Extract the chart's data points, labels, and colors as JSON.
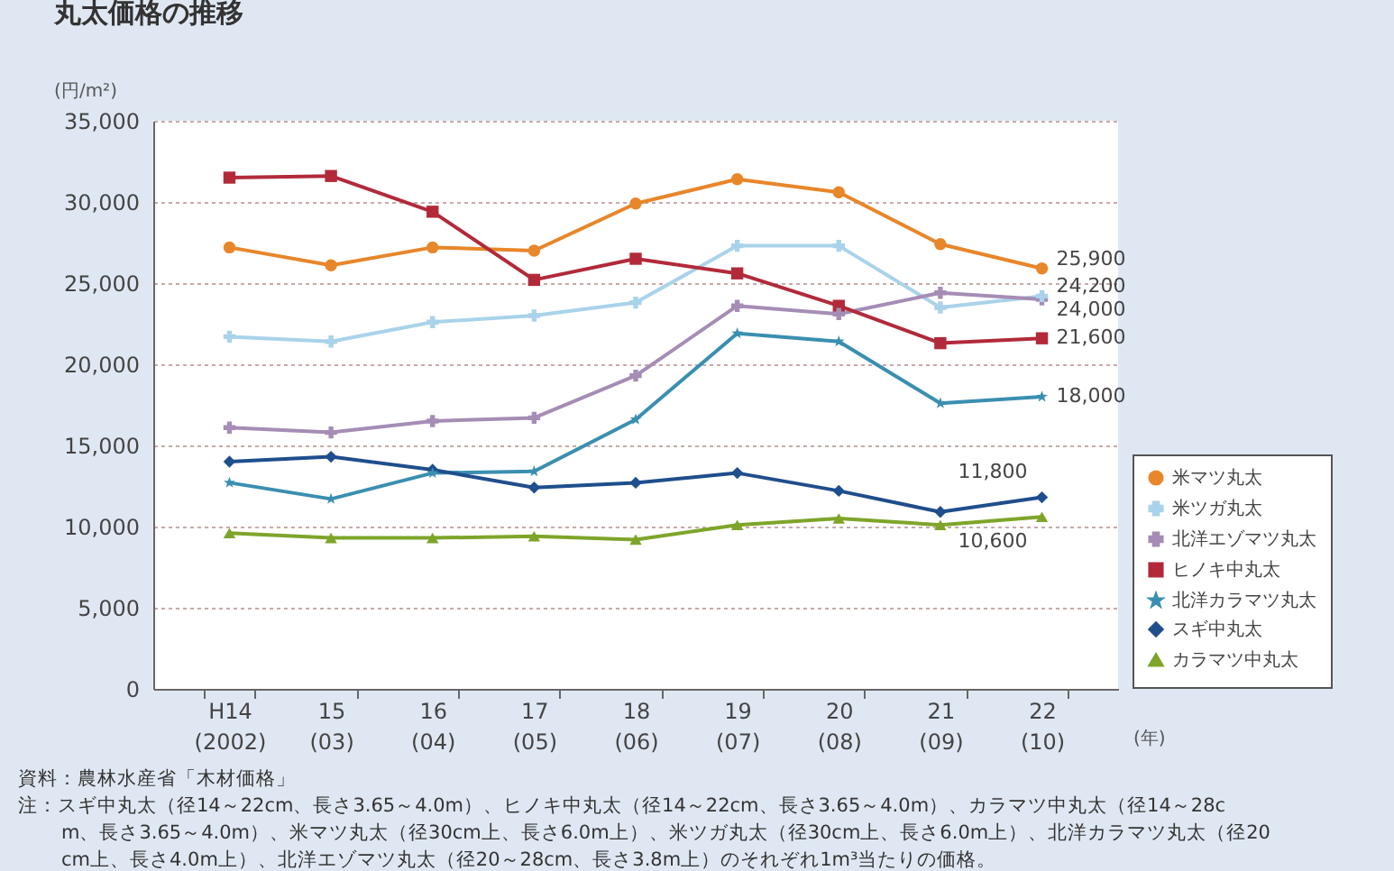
{
  "chart_data": {
    "type": "line",
    "title": "丸太価格の推移",
    "ylabel": "(円/m²)",
    "xlabel": "(年)",
    "categories": [
      "H14\n(2002)",
      "15\n(03)",
      "16\n(04)",
      "17\n(05)",
      "18\n(06)",
      "19\n(07)",
      "20\n(08)",
      "21\n(09)",
      "22\n(10)"
    ],
    "ylim": [
      0,
      35000
    ],
    "yticks": [
      {
        "value": 0,
        "label": "0"
      },
      {
        "value": 5000,
        "label": "5,000"
      },
      {
        "value": 10000,
        "label": "10,000"
      },
      {
        "value": 15000,
        "label": "15,000"
      },
      {
        "value": 20000,
        "label": "20,000"
      },
      {
        "value": 25000,
        "label": "25,000"
      },
      {
        "value": 30000,
        "label": "30,000"
      },
      {
        "value": 35000,
        "label": "35,000"
      }
    ],
    "grid": "y",
    "legend": "right",
    "line_style": "solid",
    "series": [
      {
        "name": "米マツ丸太",
        "color": "#e8862a",
        "marker": "circle",
        "values": [
          27200,
          26100,
          27200,
          27000,
          29900,
          31400,
          30600,
          27400,
          25900
        ],
        "value_labels": [
          null,
          null,
          null,
          null,
          null,
          null,
          null,
          null,
          "25,900"
        ]
      },
      {
        "name": "米ツガ丸太",
        "color": "#a9d3ea",
        "marker": "cross",
        "values": [
          21700,
          21400,
          22600,
          23000,
          23800,
          27300,
          27300,
          23500,
          24200
        ],
        "value_labels": [
          null,
          null,
          null,
          null,
          null,
          null,
          null,
          null,
          "24,200"
        ]
      },
      {
        "name": "北洋エゾマツ丸太",
        "color": "#a58db5",
        "marker": "cross",
        "values": [
          16100,
          15800,
          16500,
          16700,
          19300,
          23600,
          23100,
          24400,
          24000
        ],
        "value_labels": [
          null,
          null,
          null,
          null,
          null,
          null,
          null,
          null,
          "24,000"
        ]
      },
      {
        "name": "ヒノキ中丸太",
        "color": "#b22a3a",
        "marker": "square",
        "values": [
          31500,
          31600,
          29400,
          25200,
          26500,
          25600,
          23600,
          21300,
          21600
        ],
        "value_labels": [
          null,
          null,
          null,
          null,
          null,
          null,
          null,
          null,
          "21,600"
        ]
      },
      {
        "name": "北洋カラマツ丸太",
        "color": "#3a8fb0",
        "marker": "star",
        "values": [
          12700,
          11700,
          13300,
          13400,
          16600,
          21900,
          21400,
          17600,
          18000
        ],
        "value_labels": [
          null,
          null,
          null,
          null,
          null,
          null,
          null,
          null,
          "18,000"
        ]
      },
      {
        "name": "スギ中丸太",
        "color": "#1f4e8c",
        "marker": "diamond",
        "values": [
          14000,
          14300,
          13500,
          12400,
          12700,
          13300,
          12200,
          10900,
          11800
        ],
        "value_labels": [
          null,
          null,
          null,
          null,
          null,
          null,
          null,
          null,
          "11,800"
        ]
      },
      {
        "name": "カラマツ中丸太",
        "color": "#7ea52a",
        "marker": "triangle",
        "values": [
          9600,
          9300,
          9300,
          9400,
          9200,
          10100,
          10500,
          10100,
          10600
        ],
        "value_labels": [
          null,
          null,
          null,
          null,
          null,
          null,
          null,
          null,
          "10,600"
        ]
      }
    ],
    "annotations": [
      "資料：農林水産省「木材価格」",
      "注：スギ中丸太（径14～22cm、長さ3.65～4.0m）、ヒノキ中丸太（径14～22cm、長さ3.65～4.0m）、カラマツ中丸太（径14～28cm、長さ3.65～4.0m）、米マツ丸太（径30cm上、長さ6.0m上）、米ツガ丸太（径30cm上、長さ6.0m上）、北洋カラマツ丸太（径20cm上、長さ4.0m上）、北洋エゾマツ丸太（径20～28cm、長さ3.8m上）のそれぞれ1m³当たりの価格。"
    ]
  }
}
